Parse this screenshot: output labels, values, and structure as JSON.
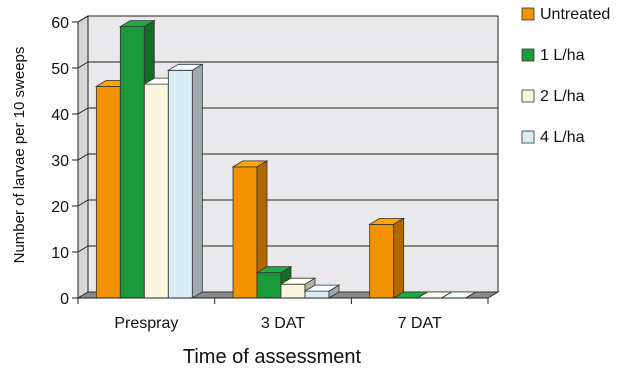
{
  "chart_data": {
    "type": "bar",
    "title": "",
    "xlabel": "Time of assessment",
    "ylabel": "Number of larvae per 10 sweeps",
    "categories": [
      "Prespray",
      "3 DAT",
      "7 DAT"
    ],
    "ylim": [
      0,
      60
    ],
    "yticks": [
      "0",
      "10",
      "20",
      "30",
      "40",
      "50",
      "60"
    ],
    "grid": true,
    "style": "3d",
    "legend_position": "right",
    "series": [
      {
        "name": "Untreated",
        "values": [
          46,
          28.5,
          16
        ],
        "color": "#f39200"
      },
      {
        "name": "1 L/ha",
        "values": [
          59,
          5.5,
          0
        ],
        "color": "#1a9a38"
      },
      {
        "name": "2 L/ha",
        "values": [
          46.5,
          3,
          0
        ],
        "color": "#faf6dc"
      },
      {
        "name": "4 L/ha",
        "values": [
          49.5,
          1.5,
          0
        ],
        "color": "#d8eef4"
      }
    ]
  }
}
